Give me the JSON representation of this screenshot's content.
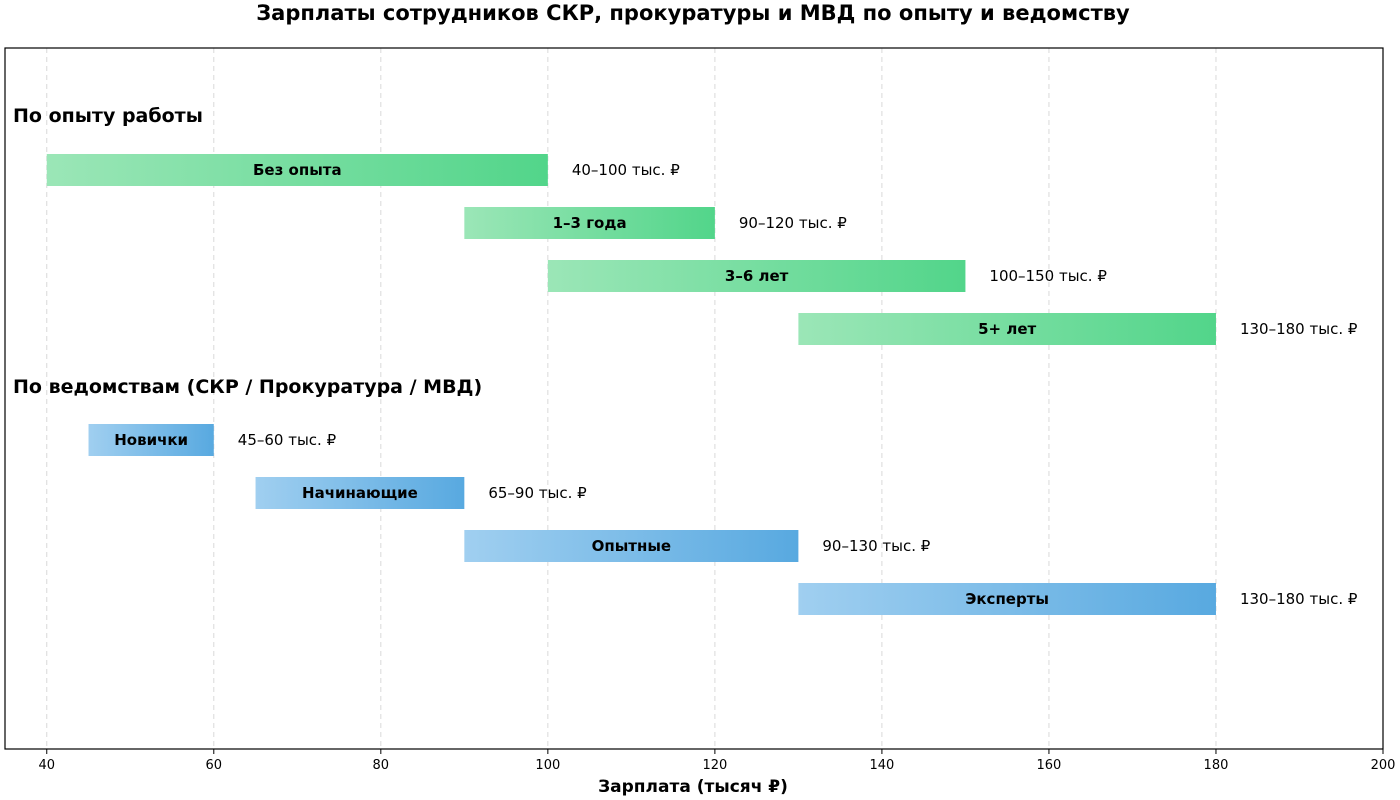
{
  "chart_data": {
    "type": "bar",
    "orientation": "horizontal-range",
    "title": "Зарплаты сотрудников СКР, прокуратуры и МВД по опыту и ведомству",
    "xlabel": "Зарплата (тысяч ₽)",
    "xlim": [
      35,
      200
    ],
    "xticks": [
      40,
      60,
      80,
      100,
      120,
      140,
      160,
      180,
      200
    ],
    "grid": true,
    "groups": [
      {
        "header": "По опыту работы",
        "color_start": "#9be6b7",
        "color_end": "#52d58a",
        "bars": [
          {
            "label": "Без опыта",
            "start": 40,
            "end": 100,
            "value_label": "40–100 тыс. ₽"
          },
          {
            "label": "1–3 года",
            "start": 90,
            "end": 120,
            "value_label": "90–120 тыс. ₽"
          },
          {
            "label": "3–6 лет",
            "start": 100,
            "end": 150,
            "value_label": "100–150 тыс. ₽"
          },
          {
            "label": "5+ лет",
            "start": 130,
            "end": 180,
            "value_label": "130–180 тыс. ₽"
          }
        ]
      },
      {
        "header": "По ведомствам (СКР / Прокуратура / МВД)",
        "color_start": "#a0cff0",
        "color_end": "#58a9e0",
        "bars": [
          {
            "label": "Новички",
            "start": 45,
            "end": 60,
            "value_label": "45–60 тыс. ₽"
          },
          {
            "label": "Начинающие",
            "start": 65,
            "end": 90,
            "value_label": "65–90 тыс. ₽"
          },
          {
            "label": "Опытные",
            "start": 90,
            "end": 130,
            "value_label": "90–130 тыс. ₽"
          },
          {
            "label": "Эксперты",
            "start": 130,
            "end": 180,
            "value_label": "130–180 тыс. ₽"
          }
        ]
      }
    ]
  }
}
